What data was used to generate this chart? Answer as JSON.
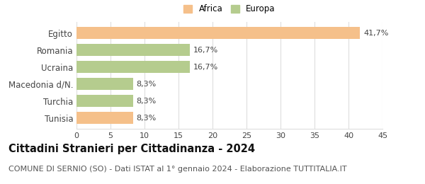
{
  "categories": [
    "Egitto",
    "Romania",
    "Ucraina",
    "Macedonia d/N.",
    "Turchia",
    "Tunisia"
  ],
  "values": [
    41.7,
    16.7,
    16.7,
    8.3,
    8.3,
    8.3
  ],
  "bar_colors": [
    "#f5c08a",
    "#b5cc8e",
    "#b5cc8e",
    "#b5cc8e",
    "#b5cc8e",
    "#f5c08a"
  ],
  "value_labels": [
    "41,7%",
    "16,7%",
    "16,7%",
    "8,3%",
    "8,3%",
    "8,3%"
  ],
  "legend": [
    {
      "label": "Africa",
      "color": "#f5c08a"
    },
    {
      "label": "Europa",
      "color": "#b5cc8e"
    }
  ],
  "xlim": [
    0,
    45
  ],
  "xticks": [
    0,
    5,
    10,
    15,
    20,
    25,
    30,
    35,
    40,
    45
  ],
  "title": "Cittadini Stranieri per Cittadinanza - 2024",
  "subtitle": "COMUNE DI SERNIO (SO) - Dati ISTAT al 1° gennaio 2024 - Elaborazione TUTTITALIA.IT",
  "background_color": "#ffffff",
  "bar_height": 0.72,
  "grid_color": "#dddddd",
  "title_fontsize": 10.5,
  "subtitle_fontsize": 8,
  "label_fontsize": 8.5,
  "value_fontsize": 8,
  "tick_fontsize": 8
}
